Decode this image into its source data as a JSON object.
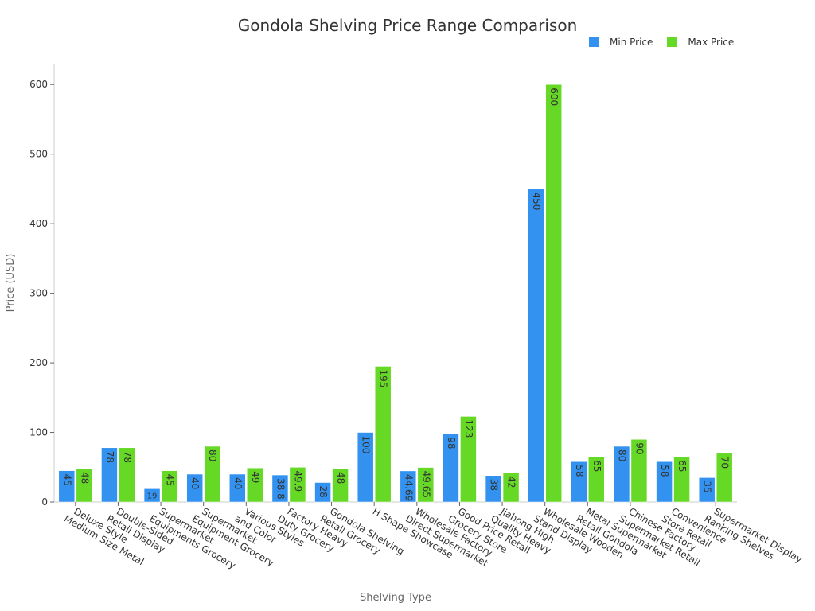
{
  "chart_data": {
    "type": "bar",
    "title": "Gondola Shelving Price Range Comparison",
    "xlabel": "Shelving Type",
    "ylabel": "Price (USD)",
    "ylim": [
      0,
      630
    ],
    "yticks": [
      0,
      100,
      200,
      300,
      400,
      500,
      600
    ],
    "grid": false,
    "legend_position": "top-right",
    "categories": [
      [
        "Deluxe Style",
        "Medium Size Metal"
      ],
      [
        "Double-Sided",
        "Retail Display"
      ],
      [
        "Supermarket",
        "Equipments Grocery"
      ],
      [
        "Supermarket",
        "Equipment Grocery"
      ],
      [
        "Various Styles",
        "and Color"
      ],
      [
        "Factory Heavy",
        "Duty Grocery"
      ],
      [
        "Gondola Shelving",
        "Retail Grocery"
      ],
      [
        "H Shape Showcase"
      ],
      [
        "Wholesale Factory",
        "Direct Supermarket"
      ],
      [
        "Good Price Retail",
        "Grocery Store"
      ],
      [
        "Jiahong High",
        "Quality Heavy"
      ],
      [
        "Wholesale Wooden",
        "Stand Display"
      ],
      [
        "Metal Supermarket",
        "Retail Gondola"
      ],
      [
        "Chinese Factory",
        "Supermarket Retail"
      ],
      [
        "Convenience",
        "Store Retail"
      ],
      [
        "Supermarket Display",
        "Ranking Shelves"
      ]
    ],
    "category_labels": [
      "Deluxe Style Medium Size Metal",
      "Double-Sided Retail Display",
      "Supermarket Equipments Grocery",
      "Supermarket Equipment Grocery",
      "Various Styles and Color",
      "Factory Heavy Duty Grocery",
      "Gondola Shelving Retail Grocery",
      "H Shape Showcase",
      "Wholesale Factory Direct Supermarket",
      "Good Price Retail Grocery Store",
      "Jiahong High Quality Heavy",
      "Wholesale Wooden Stand Display",
      "Metal Supermarket Retail Gondola",
      "Chinese Factory Supermarket Retail",
      "Convenience Store Retail",
      "Supermarket Display Ranking Shelves"
    ],
    "series": [
      {
        "name": "Min Price",
        "color": "#3392f0",
        "values": [
          45,
          78,
          19,
          40,
          40,
          38.8,
          28,
          100,
          44.69,
          98,
          38,
          450,
          58,
          80,
          58,
          35
        ]
      },
      {
        "name": "Max Price",
        "color": "#66d926",
        "values": [
          48,
          78,
          45,
          80,
          49,
          49.9,
          48,
          195,
          49.65,
          123,
          42,
          600,
          65,
          90,
          65,
          70
        ]
      }
    ]
  }
}
